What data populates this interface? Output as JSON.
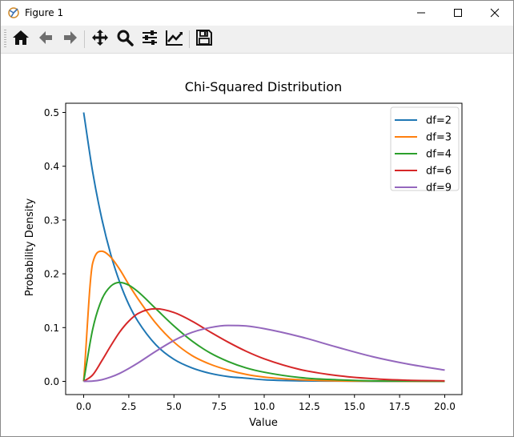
{
  "window": {
    "title": "Figure 1",
    "controls": {
      "minimize_icon": "minimize-icon",
      "maximize_icon": "maximize-icon",
      "close_icon": "close-icon"
    }
  },
  "toolbar": {
    "buttons": [
      {
        "name": "home",
        "icon": "home-icon"
      },
      {
        "name": "back",
        "icon": "back-arrow-icon"
      },
      {
        "name": "forward",
        "icon": "forward-arrow-icon"
      },
      {
        "name": "pan",
        "icon": "move-icon"
      },
      {
        "name": "zoom",
        "icon": "zoom-icon"
      },
      {
        "name": "configure-subplots",
        "icon": "sliders-icon"
      },
      {
        "name": "edit-axes",
        "icon": "line-chart-icon"
      },
      {
        "name": "save",
        "icon": "save-icon"
      }
    ]
  },
  "chart_data": {
    "type": "line",
    "title": "Chi-Squared Distribution",
    "xlabel": "Value",
    "ylabel": "Probability Density",
    "xlim": [
      0,
      20
    ],
    "ylim": [
      0,
      0.5
    ],
    "xticks": [
      "0.0",
      "2.5",
      "5.0",
      "7.5",
      "10.0",
      "12.5",
      "15.0",
      "17.5",
      "20.0"
    ],
    "yticks": [
      "0.0",
      "0.1",
      "0.2",
      "0.3",
      "0.4",
      "0.5"
    ],
    "grid": false,
    "legend_position": "top-right",
    "x": [
      0,
      0.5,
      1,
      1.5,
      2,
      2.5,
      3,
      4,
      5,
      6,
      7,
      8,
      9,
      10,
      12,
      14,
      16,
      18,
      20
    ],
    "series": [
      {
        "name": "df=2",
        "color": "#1f77b4",
        "values": [
          0.5,
          0.389,
          0.303,
          0.236,
          0.184,
          0.143,
          0.112,
          0.068,
          0.041,
          0.025,
          0.015,
          0.009,
          0.006,
          0.003,
          0.001,
          0.0005,
          0.0002,
          0.0001,
          0.0
        ]
      },
      {
        "name": "df=3",
        "color": "#ff7f0e",
        "values": [
          0.0,
          0.22,
          0.242,
          0.231,
          0.208,
          0.18,
          0.154,
          0.108,
          0.073,
          0.048,
          0.032,
          0.021,
          0.013,
          0.008,
          0.003,
          0.001,
          0.0005,
          0.0002,
          0.0001
        ]
      },
      {
        "name": "df=4",
        "color": "#2ca02c",
        "values": [
          0.0,
          0.097,
          0.152,
          0.177,
          0.184,
          0.179,
          0.167,
          0.135,
          0.103,
          0.075,
          0.053,
          0.037,
          0.025,
          0.017,
          0.007,
          0.003,
          0.001,
          0.0005,
          0.0002
        ]
      },
      {
        "name": "df=6",
        "color": "#d62728",
        "values": [
          0.0,
          0.012,
          0.038,
          0.066,
          0.092,
          0.112,
          0.126,
          0.135,
          0.128,
          0.112,
          0.092,
          0.073,
          0.056,
          0.042,
          0.022,
          0.011,
          0.005,
          0.002,
          0.001
        ]
      },
      {
        "name": "df=9",
        "color": "#9467bd",
        "values": [
          0.0,
          0.0005,
          0.003,
          0.008,
          0.015,
          0.024,
          0.034,
          0.056,
          0.076,
          0.091,
          0.1,
          0.104,
          0.103,
          0.098,
          0.083,
          0.064,
          0.046,
          0.032,
          0.021
        ]
      }
    ]
  }
}
